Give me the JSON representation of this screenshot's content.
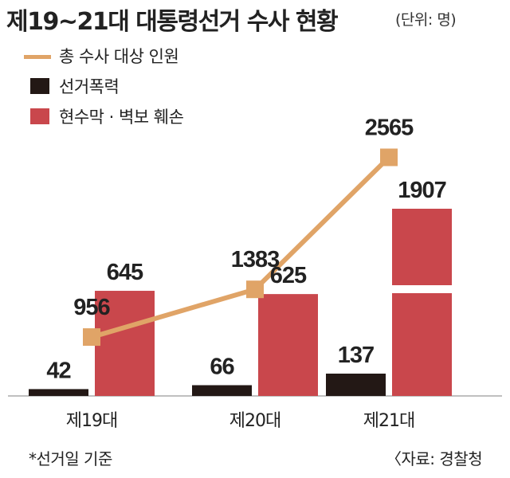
{
  "header": {
    "title": "제19~21대 대통령선거 수사 현황",
    "unit": "(단위: 명)"
  },
  "colors": {
    "line": "#e0a467",
    "violence": "#231815",
    "damage": "#c9474c"
  },
  "legend": [
    {
      "label": "총 수사 대상 인원",
      "kind": "line",
      "color": "#e0a467"
    },
    {
      "label": "선거폭력",
      "kind": "box",
      "color": "#231815"
    },
    {
      "label": "현수막 · 벽보 훼손",
      "kind": "box",
      "color": "#c9474c"
    }
  ],
  "chart_data": {
    "type": "bar",
    "categories": [
      "제19대",
      "제20대",
      "제21대"
    ],
    "series": [
      {
        "name": "선거폭력",
        "kind": "bar",
        "values": [
          42,
          66,
          137
        ]
      },
      {
        "name": "현수막 · 벽보 훼손",
        "kind": "bar",
        "values": [
          645,
          625,
          1907
        ]
      },
      {
        "name": "총 수사 대상 인원",
        "kind": "line",
        "values": [
          956,
          1383,
          2565
        ]
      }
    ],
    "title": "제19~21대 대통령선거 수사 현황",
    "ylabel": "",
    "unit": "명",
    "axis_break": true,
    "grid": false
  },
  "footnote": {
    "left": "*선거일 기준",
    "right": "〈자료: 경찰청"
  }
}
